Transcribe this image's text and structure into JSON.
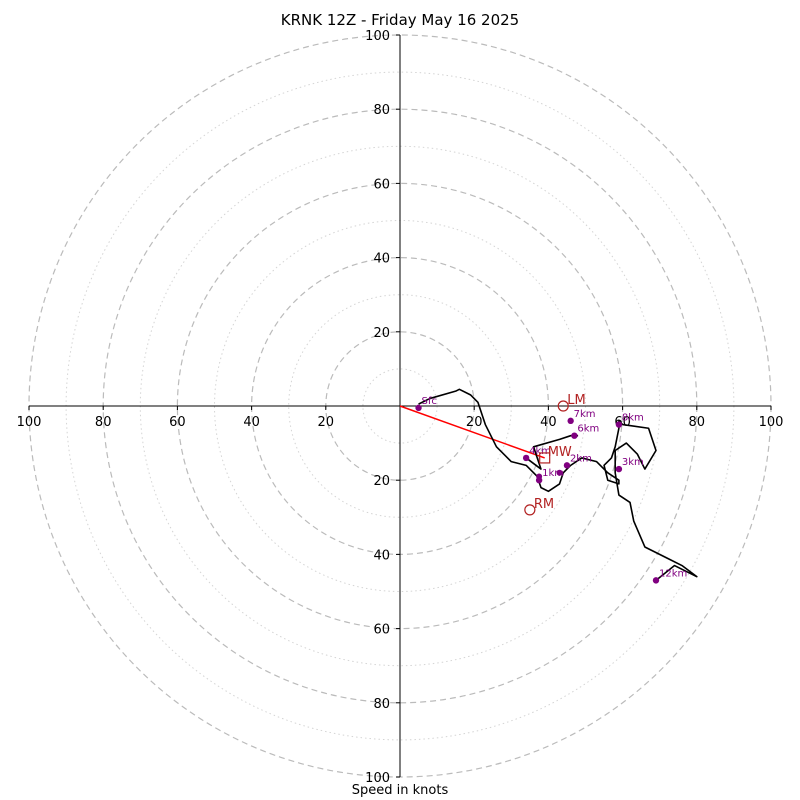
{
  "chart_data": {
    "type": "hodograph",
    "title": "KRNK 12Z - Friday May 16 2025",
    "xlabel": "Speed in knots",
    "ylim": [
      -100,
      100
    ],
    "xlim": [
      -100,
      100
    ],
    "ring_step_major": 20,
    "ring_step_minor": 10,
    "grid": true,
    "tick_labels": [
      "100",
      "80",
      "60",
      "40",
      "20",
      "20",
      "40",
      "60",
      "80",
      "100"
    ],
    "tick_values": [
      -100,
      -80,
      -60,
      -40,
      -20,
      20,
      40,
      60,
      80,
      100
    ],
    "wind_trace": {
      "color": "#000000",
      "points": [
        [
          5,
          0.5
        ],
        [
          8,
          2
        ],
        [
          15,
          4
        ],
        [
          16,
          4.5
        ],
        [
          19,
          3
        ],
        [
          21,
          1
        ],
        [
          22,
          -2
        ],
        [
          23,
          -5
        ],
        [
          26,
          -11
        ],
        [
          30,
          -15
        ],
        [
          34,
          -16
        ],
        [
          37,
          -19
        ],
        [
          38,
          -22
        ],
        [
          40,
          -23
        ],
        [
          43,
          -21
        ],
        [
          44,
          -18
        ],
        [
          46,
          -16
        ],
        [
          49,
          -14
        ],
        [
          53,
          -15
        ],
        [
          56,
          -18
        ],
        [
          59,
          -20
        ],
        [
          59,
          -21
        ],
        [
          56,
          -20
        ],
        [
          55,
          -16
        ],
        [
          57,
          -14
        ],
        [
          58,
          -11
        ],
        [
          59,
          -6
        ],
        [
          59,
          -4
        ],
        [
          60,
          -5
        ],
        [
          67,
          -6
        ],
        [
          69,
          -12
        ],
        [
          66,
          -17
        ],
        [
          64,
          -13
        ],
        [
          61,
          -10
        ],
        [
          58,
          -12
        ],
        [
          58,
          -18
        ],
        [
          59,
          -24
        ],
        [
          62,
          -26
        ],
        [
          63,
          -31
        ],
        [
          66,
          -38
        ],
        [
          72,
          -41
        ],
        [
          76,
          -43
        ],
        [
          80,
          -46
        ],
        [
          74,
          -43
        ],
        [
          69,
          -47
        ]
      ],
      "extra_segment": [
        [
          34,
          -14
        ],
        [
          38,
          -17
        ],
        [
          36,
          -11
        ],
        [
          43,
          -9
        ],
        [
          46,
          -8
        ],
        [
          48,
          -8
        ]
      ]
    },
    "height_markers": [
      {
        "label": "Sfc",
        "u": 5,
        "v": -0.5
      },
      {
        "label": "1km",
        "u": 37.5,
        "v": -20
      },
      {
        "label": "2km",
        "u": 45,
        "v": -16
      },
      {
        "label": "3km",
        "u": 59,
        "v": -17
      },
      {
        "label": "4km",
        "u": 34,
        "v": -14
      },
      {
        "label": "6km",
        "u": 47,
        "v": -8
      },
      {
        "label": "7km",
        "u": 46,
        "v": -4
      },
      {
        "label": "8km",
        "u": 59,
        "v": -5
      },
      {
        "label": "12km",
        "u": 69,
        "v": -47
      }
    ],
    "extra_points": [
      {
        "u": 37.5,
        "v": -19
      },
      {
        "u": 43,
        "v": -18
      }
    ],
    "storm_motion": {
      "LM": {
        "label": "LM",
        "u": 44,
        "v": 0
      },
      "RM": {
        "label": "RM",
        "u": 35,
        "v": -28
      },
      "MW": {
        "label": "MW",
        "u": 39,
        "v": -14
      },
      "shear_vector": {
        "from": [
          0,
          0
        ],
        "to": [
          39,
          -14
        ],
        "color": "#ff0000"
      }
    },
    "colors": {
      "trace": "#000000",
      "markers": "#800080",
      "storm": "#b22222",
      "rings": "#bbbbbb"
    }
  }
}
